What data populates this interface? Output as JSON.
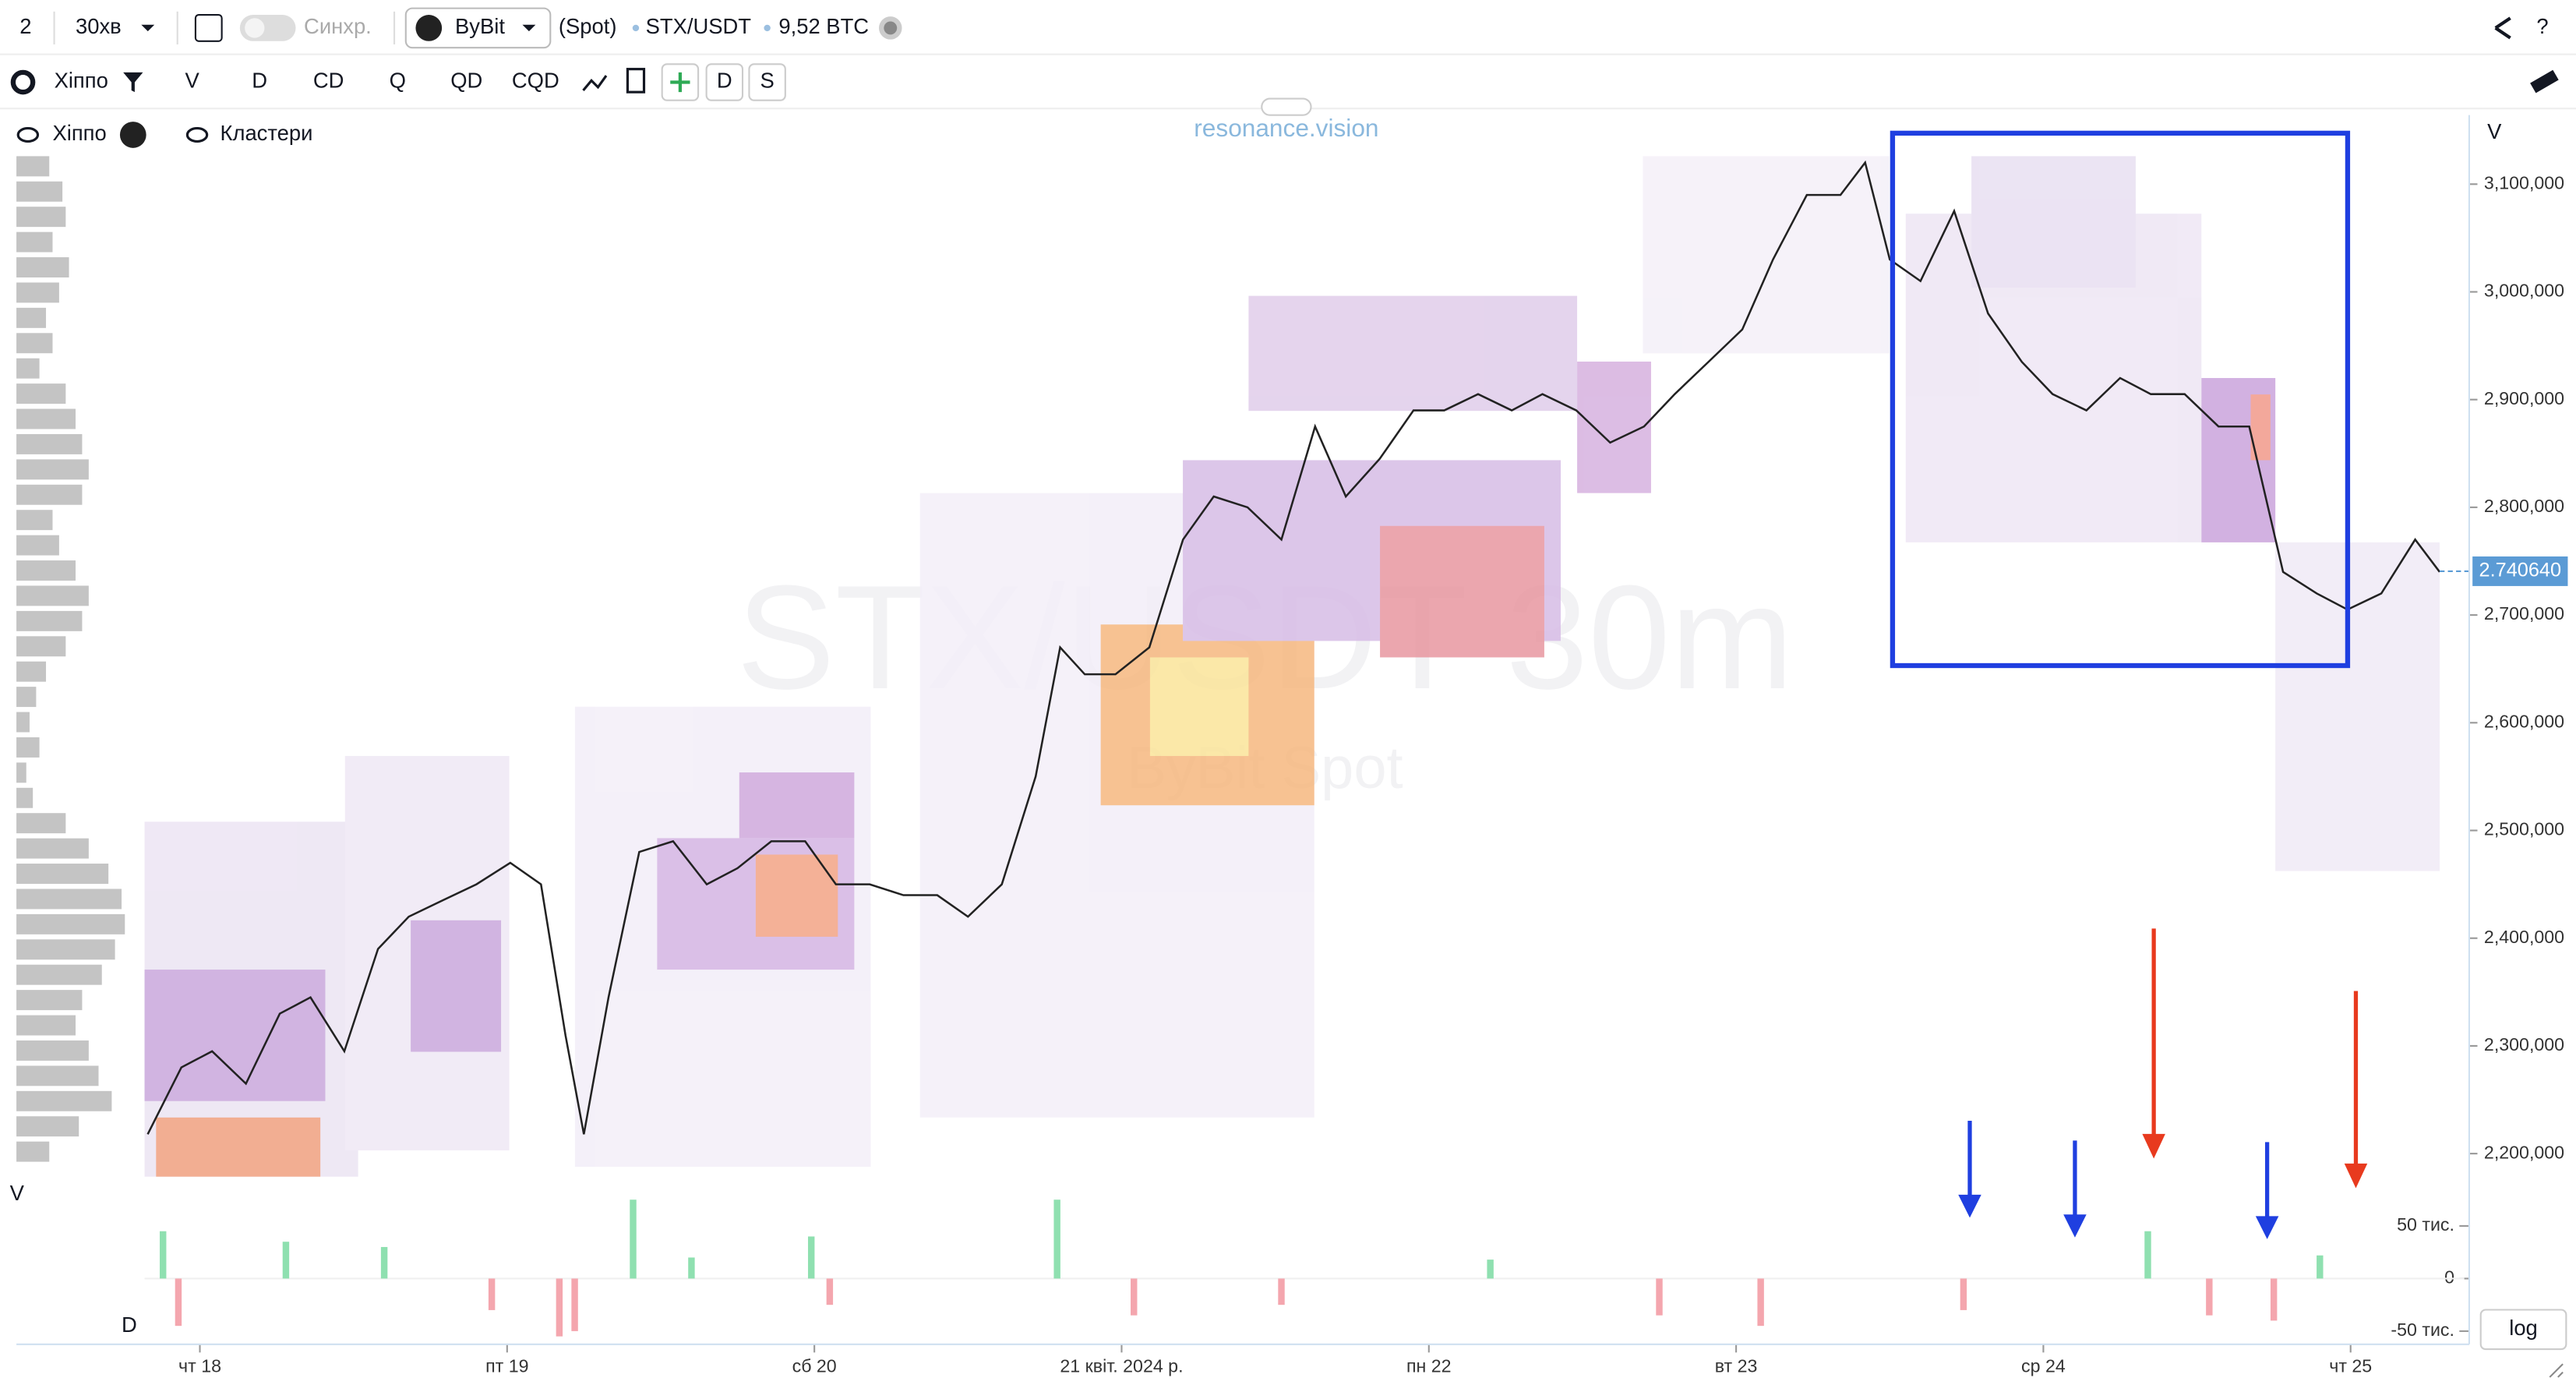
{
  "toolbar": {
    "layout": "2",
    "interval": "30хв",
    "sync": "Синхр.",
    "exchange": "ByBit",
    "market": "(Spot)",
    "symbol": "STX/USDT",
    "volume": "9,52 BTC",
    "help": "?",
    "indicator": "Хіппо",
    "buttons": [
      "V",
      "D",
      "CD",
      "Q",
      "QD",
      "CQD"
    ],
    "extra_buttons": [
      "D",
      "S"
    ]
  },
  "legend": {
    "items": [
      "Хіппо",
      "Кластери"
    ]
  },
  "brand": "resonance.vision",
  "chart_data": {
    "type": "line",
    "watermark": "STX/USDT 30m",
    "watermark_sub": "ByBit Spot",
    "y_axis_title": "V",
    "lower_title_v": "V",
    "lower_title_d": "D",
    "scale_button": "log",
    "xlim": [
      -0.18,
      7.37
    ],
    "xticks": [
      {
        "value": 0,
        "label": "чт 18"
      },
      {
        "value": 1,
        "label": "пт 19"
      },
      {
        "value": 2,
        "label": "сб 20"
      },
      {
        "value": 3,
        "label": "21 квіт. 2024 р."
      },
      {
        "value": 4,
        "label": "пн 22"
      },
      {
        "value": 5,
        "label": "вт 23"
      },
      {
        "value": 6,
        "label": "ср 24"
      },
      {
        "value": 7,
        "label": "чт 25"
      }
    ],
    "ylim": [
      2178600,
      3133600
    ],
    "yticks": [
      {
        "value": 2200000,
        "label": "2,200,000"
      },
      {
        "value": 2300000,
        "label": "2,300,000"
      },
      {
        "value": 2400000,
        "label": "2,400,000"
      },
      {
        "value": 2500000,
        "label": "2,500,000"
      },
      {
        "value": 2600000,
        "label": "2,600,000"
      },
      {
        "value": 2700000,
        "label": "2,700,000"
      },
      {
        "value": 2800000,
        "label": "2,800,000"
      },
      {
        "value": 2900000,
        "label": "2,900,000"
      },
      {
        "value": 3000000,
        "label": "3,000,000"
      },
      {
        "value": 3100000,
        "label": "3,100,000"
      }
    ],
    "last_price": {
      "value": 2740640,
      "label": "2.740640"
    },
    "series": [
      {
        "name": "STX/USDT",
        "color": "#222222",
        "x": [
          -0.17,
          -0.06,
          0.04,
          0.15,
          0.26,
          0.36,
          0.47,
          0.58,
          0.68,
          0.79,
          0.9,
          1.01,
          1.11,
          1.19,
          1.25,
          1.33,
          1.43,
          1.54,
          1.65,
          1.75,
          1.86,
          1.97,
          2.07,
          2.18,
          2.29,
          2.4,
          2.5,
          2.61,
          2.72,
          2.8,
          2.88,
          2.98,
          3.09,
          3.2,
          3.3,
          3.41,
          3.52,
          3.63,
          3.73,
          3.84,
          3.95,
          4.05,
          4.16,
          4.27,
          4.37,
          4.48,
          4.59,
          4.7,
          4.8,
          4.91,
          5.02,
          5.12,
          5.23,
          5.34,
          5.42,
          5.5,
          5.6,
          5.71,
          5.82,
          5.93,
          6.03,
          6.14,
          6.25,
          6.35,
          6.46,
          6.57,
          6.67,
          6.78,
          6.89,
          6.99,
          7.1,
          7.21,
          7.29
        ],
        "values": [
          2218000,
          2280000,
          2295000,
          2265000,
          2330000,
          2345000,
          2295000,
          2390000,
          2420000,
          2435000,
          2450000,
          2470000,
          2450000,
          2310000,
          2218000,
          2345000,
          2480000,
          2490000,
          2450000,
          2465000,
          2490000,
          2490000,
          2450000,
          2450000,
          2440000,
          2440000,
          2420000,
          2450000,
          2550000,
          2670000,
          2645000,
          2645000,
          2670000,
          2770000,
          2810000,
          2800000,
          2770000,
          2875000,
          2810000,
          2845000,
          2890000,
          2890000,
          2905000,
          2890000,
          2905000,
          2890000,
          2860000,
          2875000,
          2905000,
          2935000,
          2965000,
          3030000,
          3090000,
          3090000,
          3120000,
          3030000,
          3010000,
          3075000,
          2980000,
          2935000,
          2905000,
          2890000,
          2920000,
          2905000,
          2905000,
          2875000,
          2875000,
          2740000,
          2720000,
          2705000,
          2720000,
          2770000,
          2740000
        ]
      }
    ],
    "delta": {
      "ylim": [
        -62500,
        62500
      ],
      "yticks": [
        {
          "value": 50000,
          "label": "50 тис."
        },
        0,
        {
          "value": -50000,
          "label": "-50 тис."
        }
      ],
      "positive_color": "#8fe0b0",
      "negative_color": "#f4a6ae",
      "x": [
        -0.12,
        -0.07,
        0.28,
        0.6,
        0.95,
        1.17,
        1.22,
        1.41,
        1.6,
        1.99,
        2.05,
        2.79,
        3.04,
        3.52,
        4.2,
        4.75,
        5.08,
        5.74,
        6.34,
        6.54,
        6.75,
        6.9
      ],
      "values": [
        45000,
        -45000,
        35000,
        30000,
        -30000,
        -55000,
        -50000,
        75000,
        20000,
        40000,
        -25000,
        75000,
        -35000,
        -25000,
        18000,
        -35000,
        -45000,
        -30000,
        45000,
        -35000,
        -40000,
        22000
      ]
    },
    "volume_profile": {
      "color": "#c4c4c4",
      "values": [
        20,
        28,
        30,
        22,
        32,
        26,
        18,
        22,
        14,
        30,
        36,
        40,
        44,
        40,
        22,
        26,
        36,
        44,
        40,
        30,
        18,
        12,
        8,
        14,
        6,
        10,
        30,
        44,
        56,
        64,
        66,
        60,
        52,
        40,
        36,
        44,
        50,
        58,
        38,
        20
      ]
    }
  }
}
